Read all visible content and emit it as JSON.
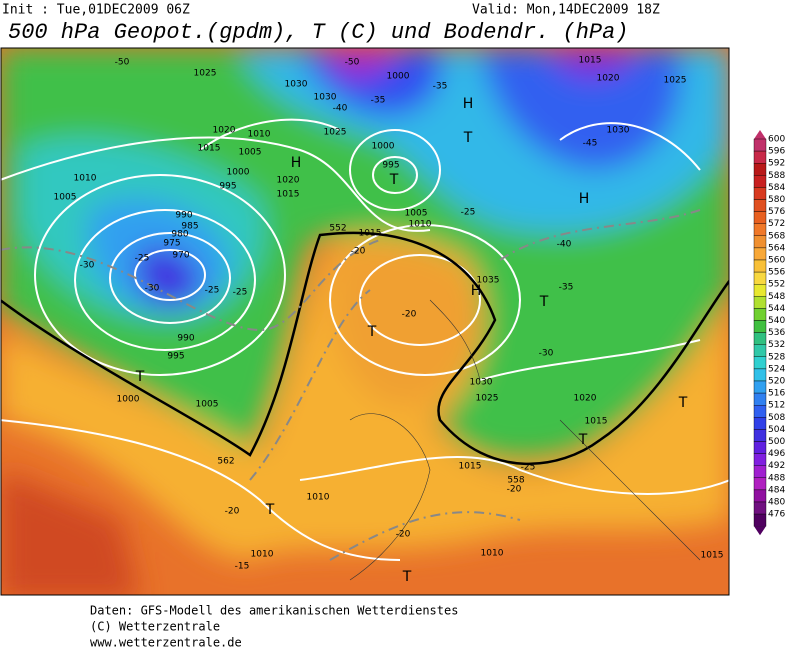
{
  "header": {
    "init": "Init : Tue,01DEC2009 06Z",
    "valid": "Valid: Mon,14DEC2009 18Z",
    "title": "500 hPa Geopot.(gpdm), T (C) und Bodendr. (hPa)"
  },
  "legend": {
    "levels": [
      "600",
      "596",
      "592",
      "588",
      "584",
      "580",
      "576",
      "572",
      "568",
      "564",
      "560",
      "556",
      "552",
      "548",
      "544",
      "540",
      "536",
      "532",
      "528",
      "524",
      "520",
      "516",
      "512",
      "508",
      "504",
      "500",
      "496",
      "492",
      "488",
      "484",
      "480",
      "476"
    ],
    "colors": [
      "#c0306a",
      "#c82848",
      "#b81818",
      "#c82020",
      "#d83a20",
      "#e05020",
      "#e86020",
      "#f07828",
      "#f09030",
      "#f8a838",
      "#f8c038",
      "#f8d840",
      "#e8e830",
      "#b0e030",
      "#70d030",
      "#40c040",
      "#30c080",
      "#30c8a8",
      "#30d0d0",
      "#30c0e8",
      "#30a0f0",
      "#3080f0",
      "#3060f0",
      "#3040e8",
      "#4030e0",
      "#6020e0",
      "#8020e0",
      "#a020d0",
      "#b020c0",
      "#9010a0",
      "#701080",
      "#500060"
    ]
  },
  "map": {
    "labels": [
      "-50",
      "1025",
      "1030",
      "-50",
      "1000",
      "-35",
      "1015",
      "1020",
      "1025",
      "1030",
      "H",
      "T",
      "1020",
      "1010",
      "1015",
      "1005",
      "1000",
      "-40",
      "1030",
      "1025",
      "-35",
      "1000",
      "995",
      "T",
      "H",
      "1020",
      "1015",
      "-45",
      "1010",
      "1005",
      "995",
      "-25",
      "H",
      "1005",
      "1010",
      "990",
      "985",
      "980",
      "975",
      "970",
      "-25",
      "-30",
      "-30",
      "-25",
      "-25",
      "552",
      "1015",
      "-20",
      "-40",
      "1035",
      "H",
      "T",
      "-35",
      "-20",
      "T",
      "990",
      "995",
      "-30",
      "T",
      "1000",
      "1005",
      "1030",
      "1025",
      "1020",
      "1015",
      "T",
      "T",
      "562",
      "-25",
      "1015",
      "558",
      "-20",
      "1010",
      "T",
      "-20",
      "-20",
      "1010",
      "-15",
      "1010",
      "T",
      "1015"
    ]
  },
  "footer": {
    "lines": [
      "Daten: GFS-Modell des amerikanischen Wetterdienstes",
      "(C) Wetterzentrale",
      "www.wetterzentrale.de"
    ]
  }
}
